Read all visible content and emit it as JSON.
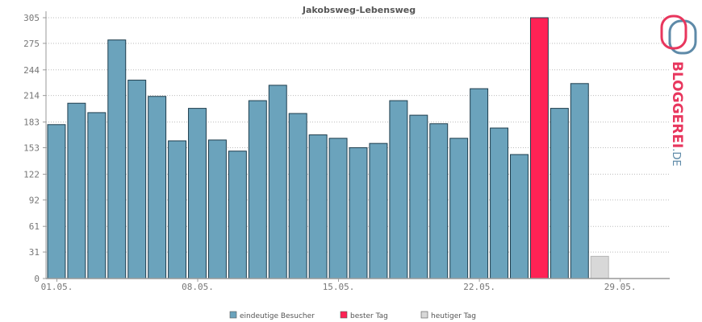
{
  "chart_data": {
    "type": "bar",
    "title": "Jakobsweg-Lebensweg",
    "y_ticks": [
      0,
      31,
      61,
      92,
      122,
      153,
      183,
      214,
      244,
      275,
      305
    ],
    "ylim": [
      0,
      305
    ],
    "x_tick_labels": [
      {
        "label": "01.05.",
        "day": 1
      },
      {
        "label": "08.05.",
        "day": 8
      },
      {
        "label": "15.05.",
        "day": 15
      },
      {
        "label": "22.05.",
        "day": 22
      },
      {
        "label": "29.05.",
        "day": 29
      }
    ],
    "days": [
      1,
      2,
      3,
      4,
      5,
      6,
      7,
      8,
      9,
      10,
      11,
      12,
      13,
      14,
      15,
      16,
      17,
      18,
      19,
      20,
      21,
      22,
      23,
      24,
      25,
      26,
      27,
      28
    ],
    "values": [
      180,
      205,
      194,
      279,
      232,
      213,
      161,
      199,
      162,
      149,
      208,
      226,
      193,
      168,
      164,
      153,
      158,
      208,
      191,
      181,
      164,
      222,
      176,
      145,
      305,
      199,
      228,
      26
    ],
    "bar_type": [
      "normal",
      "normal",
      "normal",
      "normal",
      "normal",
      "normal",
      "normal",
      "normal",
      "normal",
      "normal",
      "normal",
      "normal",
      "normal",
      "normal",
      "normal",
      "normal",
      "normal",
      "normal",
      "normal",
      "normal",
      "normal",
      "normal",
      "normal",
      "normal",
      "best",
      "normal",
      "normal",
      "today"
    ],
    "x_days_visible": 31,
    "grid": "horizontal dotted",
    "legend_placement": "bottom-center",
    "legend": [
      {
        "key": "normal",
        "label": "eindeutige Besucher",
        "color": "#6ba3bc"
      },
      {
        "key": "best",
        "label": "bester Tag",
        "color": "#ff2255"
      },
      {
        "key": "today",
        "label": "heutiger Tag",
        "color": "#d8d8d8"
      }
    ]
  },
  "logo": {
    "word": "BLOGGEREI",
    "suffix": ".DE",
    "color_red": "#e8365d",
    "color_blue": "#5e8aa8"
  }
}
